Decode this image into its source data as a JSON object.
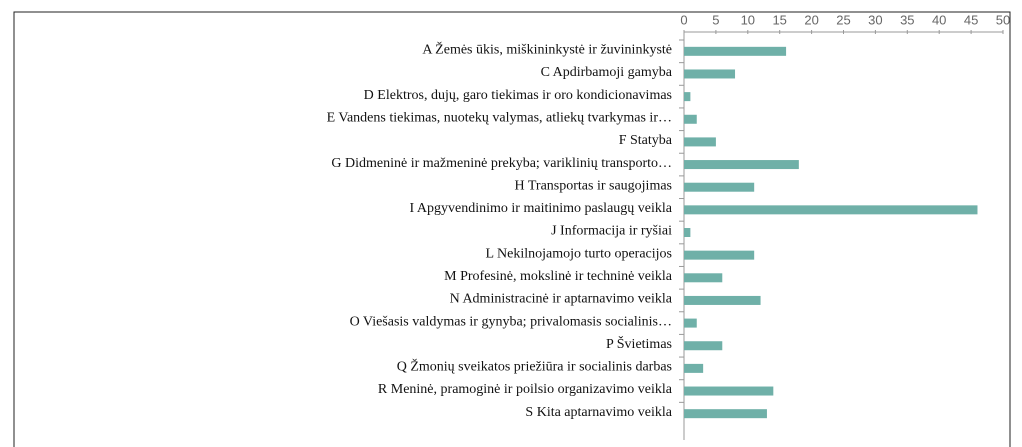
{
  "chart_data": {
    "type": "bar",
    "orientation": "horizontal",
    "categories": [
      "A Žemės ūkis, miškininkystė ir žuvininkystė",
      "C Apdirbamoji gamyba",
      "D Elektros, dujų, garo tiekimas ir oro kondicionavimas",
      "E Vandens tiekimas, nuotekų valymas, atliekų tvarkymas ir…",
      "F Statyba",
      "G Didmeninė ir mažmeninė prekyba; variklinių transporto…",
      "H Transportas ir saugojimas",
      "I Apgyvendinimo ir maitinimo paslaugų veikla",
      "J Informacija ir ryšiai",
      "L Nekilnojamojo turto operacijos",
      "M Profesinė, mokslinė ir techninė veikla",
      "N Administracinė ir aptarnavimo veikla",
      "O Viešasis valdymas ir gynyba; privalomasis socialinis…",
      "P Švietimas",
      "Q Žmonių sveikatos priežiūra ir socialinis darbas",
      "R Meninė, pramoginė ir poilsio organizavimo veikla",
      "S Kita aptarnavimo veikla"
    ],
    "values": [
      16,
      8,
      1,
      2,
      5,
      18,
      11,
      46,
      1,
      11,
      6,
      12,
      2,
      6,
      3,
      14,
      13
    ],
    "color": "#6fb0a8",
    "xlim": [
      0,
      50
    ],
    "xticks": [
      0,
      5,
      10,
      15,
      20,
      25,
      30,
      35,
      40,
      45,
      50
    ],
    "grid": false
  }
}
